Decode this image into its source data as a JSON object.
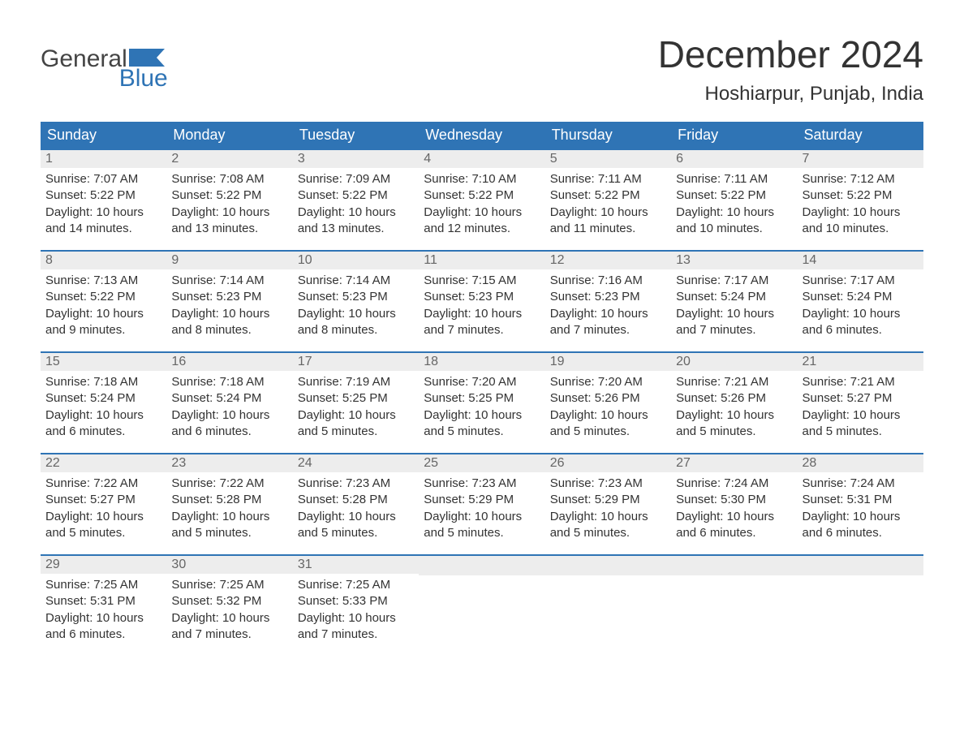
{
  "logo": {
    "word1": "General",
    "word2": "Blue"
  },
  "title": "December 2024",
  "location": "Hoshiarpur, Punjab, India",
  "colors": {
    "header_bg": "#2f74b5",
    "header_text": "#ffffff",
    "daynum_bg": "#ededed",
    "daynum_text": "#666666",
    "body_bg": "#ffffff",
    "text": "#333333",
    "rule": "#2f74b5",
    "logo_blue": "#2f74b5"
  },
  "weekdays": [
    "Sunday",
    "Monday",
    "Tuesday",
    "Wednesday",
    "Thursday",
    "Friday",
    "Saturday"
  ],
  "labels": {
    "sunrise": "Sunrise:",
    "sunset": "Sunset:",
    "daylight": "Daylight:"
  },
  "days": [
    {
      "n": 1,
      "sunrise": "7:07 AM",
      "sunset": "5:22 PM",
      "daylight": "10 hours and 14 minutes."
    },
    {
      "n": 2,
      "sunrise": "7:08 AM",
      "sunset": "5:22 PM",
      "daylight": "10 hours and 13 minutes."
    },
    {
      "n": 3,
      "sunrise": "7:09 AM",
      "sunset": "5:22 PM",
      "daylight": "10 hours and 13 minutes."
    },
    {
      "n": 4,
      "sunrise": "7:10 AM",
      "sunset": "5:22 PM",
      "daylight": "10 hours and 12 minutes."
    },
    {
      "n": 5,
      "sunrise": "7:11 AM",
      "sunset": "5:22 PM",
      "daylight": "10 hours and 11 minutes."
    },
    {
      "n": 6,
      "sunrise": "7:11 AM",
      "sunset": "5:22 PM",
      "daylight": "10 hours and 10 minutes."
    },
    {
      "n": 7,
      "sunrise": "7:12 AM",
      "sunset": "5:22 PM",
      "daylight": "10 hours and 10 minutes."
    },
    {
      "n": 8,
      "sunrise": "7:13 AM",
      "sunset": "5:22 PM",
      "daylight": "10 hours and 9 minutes."
    },
    {
      "n": 9,
      "sunrise": "7:14 AM",
      "sunset": "5:23 PM",
      "daylight": "10 hours and 8 minutes."
    },
    {
      "n": 10,
      "sunrise": "7:14 AM",
      "sunset": "5:23 PM",
      "daylight": "10 hours and 8 minutes."
    },
    {
      "n": 11,
      "sunrise": "7:15 AM",
      "sunset": "5:23 PM",
      "daylight": "10 hours and 7 minutes."
    },
    {
      "n": 12,
      "sunrise": "7:16 AM",
      "sunset": "5:23 PM",
      "daylight": "10 hours and 7 minutes."
    },
    {
      "n": 13,
      "sunrise": "7:17 AM",
      "sunset": "5:24 PM",
      "daylight": "10 hours and 7 minutes."
    },
    {
      "n": 14,
      "sunrise": "7:17 AM",
      "sunset": "5:24 PM",
      "daylight": "10 hours and 6 minutes."
    },
    {
      "n": 15,
      "sunrise": "7:18 AM",
      "sunset": "5:24 PM",
      "daylight": "10 hours and 6 minutes."
    },
    {
      "n": 16,
      "sunrise": "7:18 AM",
      "sunset": "5:24 PM",
      "daylight": "10 hours and 6 minutes."
    },
    {
      "n": 17,
      "sunrise": "7:19 AM",
      "sunset": "5:25 PM",
      "daylight": "10 hours and 5 minutes."
    },
    {
      "n": 18,
      "sunrise": "7:20 AM",
      "sunset": "5:25 PM",
      "daylight": "10 hours and 5 minutes."
    },
    {
      "n": 19,
      "sunrise": "7:20 AM",
      "sunset": "5:26 PM",
      "daylight": "10 hours and 5 minutes."
    },
    {
      "n": 20,
      "sunrise": "7:21 AM",
      "sunset": "5:26 PM",
      "daylight": "10 hours and 5 minutes."
    },
    {
      "n": 21,
      "sunrise": "7:21 AM",
      "sunset": "5:27 PM",
      "daylight": "10 hours and 5 minutes."
    },
    {
      "n": 22,
      "sunrise": "7:22 AM",
      "sunset": "5:27 PM",
      "daylight": "10 hours and 5 minutes."
    },
    {
      "n": 23,
      "sunrise": "7:22 AM",
      "sunset": "5:28 PM",
      "daylight": "10 hours and 5 minutes."
    },
    {
      "n": 24,
      "sunrise": "7:23 AM",
      "sunset": "5:28 PM",
      "daylight": "10 hours and 5 minutes."
    },
    {
      "n": 25,
      "sunrise": "7:23 AM",
      "sunset": "5:29 PM",
      "daylight": "10 hours and 5 minutes."
    },
    {
      "n": 26,
      "sunrise": "7:23 AM",
      "sunset": "5:29 PM",
      "daylight": "10 hours and 5 minutes."
    },
    {
      "n": 27,
      "sunrise": "7:24 AM",
      "sunset": "5:30 PM",
      "daylight": "10 hours and 6 minutes."
    },
    {
      "n": 28,
      "sunrise": "7:24 AM",
      "sunset": "5:31 PM",
      "daylight": "10 hours and 6 minutes."
    },
    {
      "n": 29,
      "sunrise": "7:25 AM",
      "sunset": "5:31 PM",
      "daylight": "10 hours and 6 minutes."
    },
    {
      "n": 30,
      "sunrise": "7:25 AM",
      "sunset": "5:32 PM",
      "daylight": "10 hours and 7 minutes."
    },
    {
      "n": 31,
      "sunrise": "7:25 AM",
      "sunset": "5:33 PM",
      "daylight": "10 hours and 7 minutes."
    }
  ],
  "layout": {
    "first_weekday_index": 0,
    "columns": 7,
    "rows": 5
  }
}
